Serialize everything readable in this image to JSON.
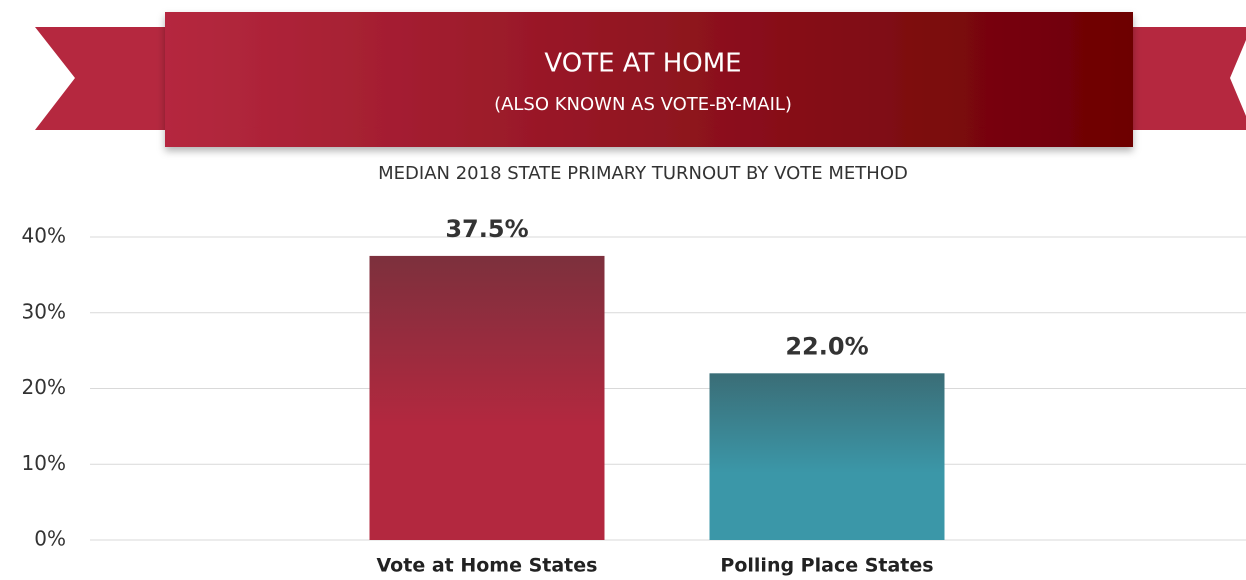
{
  "chart_data": {
    "type": "bar",
    "title": "VOTE AT HOME",
    "subtitle": "(ALSO KNOWN AS VOTE-BY-MAIL)",
    "chart_title": "MEDIAN 2018 STATE PRIMARY TURNOUT BY VOTE METHOD",
    "categories": [
      "Vote at Home States",
      "Polling Place States"
    ],
    "values": [
      37.5,
      22.0
    ],
    "value_labels": [
      "37.5%",
      "22.0%"
    ],
    "colors": [
      "#b3283f",
      "#3b97a8"
    ],
    "ylim": [
      0,
      40
    ],
    "yticks": [
      {
        "value": 0,
        "label": "0%"
      },
      {
        "value": 10,
        "label": "10%"
      },
      {
        "value": 20,
        "label": "20%"
      },
      {
        "value": 30,
        "label": "30%"
      },
      {
        "value": 40,
        "label": "40%"
      }
    ],
    "grid": true
  }
}
